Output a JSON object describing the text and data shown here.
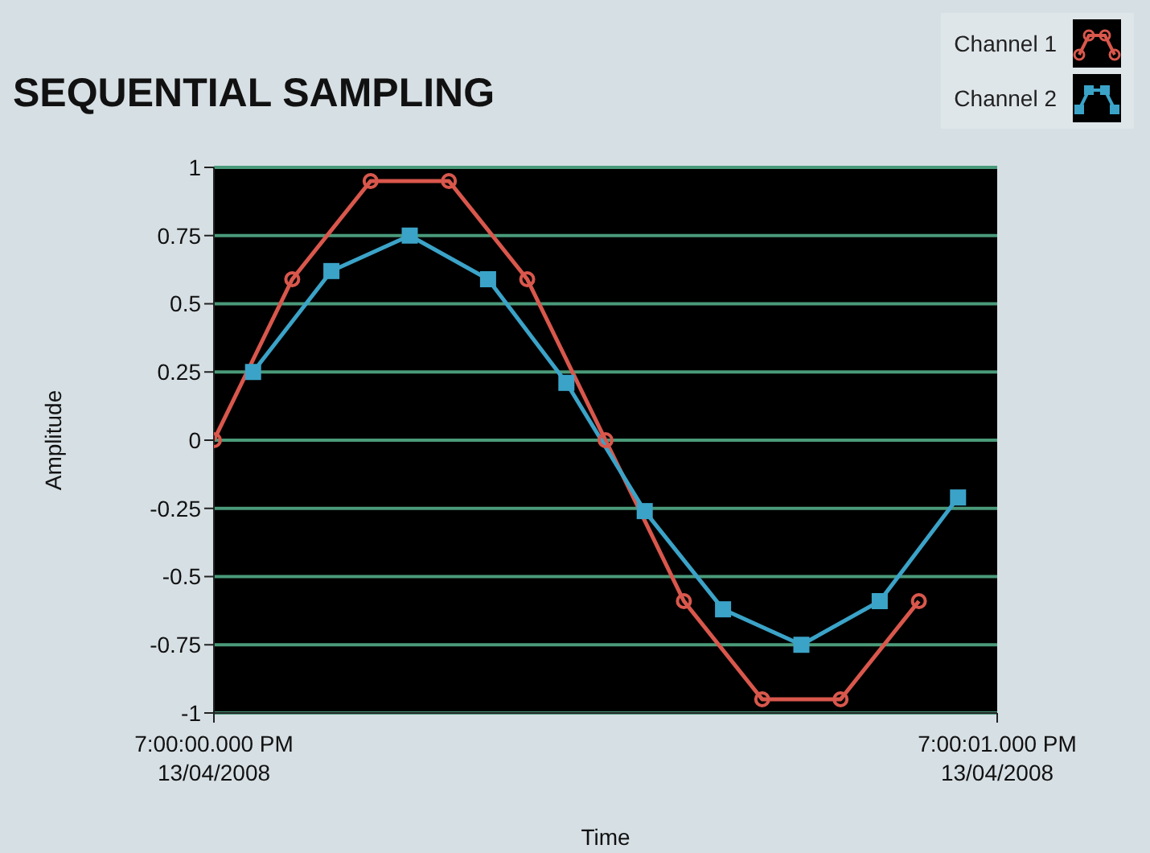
{
  "chart_data": {
    "type": "line",
    "title": "SEQUENTIAL SAMPLING",
    "xlabel": "Time",
    "ylabel": "Amplitude",
    "xlim": [
      "2008-04-13T19:00:00.000",
      "2008-04-13T19:00:01.000"
    ],
    "xticks": [
      {
        "value": "2008-04-13T19:00:00.000",
        "label": "7:00:00.000 PM\n13/04/2008"
      },
      {
        "value": "2008-04-13T19:00:01.000",
        "label": "7:00:01.000 PM\n13/04/2008"
      }
    ],
    "ylim": [
      -1,
      1
    ],
    "yticks": [
      -1,
      -0.75,
      -0.5,
      -0.25,
      0,
      0.25,
      0.5,
      0.75,
      1
    ],
    "grid": "y",
    "legend": "top right",
    "series": [
      {
        "name": "Channel 1",
        "color": "#d9574c",
        "marker": "circle",
        "x": [
          "2008-04-13T19:00:00.000",
          "2008-04-13T19:00:00.100",
          "2008-04-13T19:00:00.200",
          "2008-04-13T19:00:00.300",
          "2008-04-13T19:00:00.400",
          "2008-04-13T19:00:00.500",
          "2008-04-13T19:00:00.600",
          "2008-04-13T19:00:00.700",
          "2008-04-13T19:00:00.800",
          "2008-04-13T19:00:00.900"
        ],
        "values": [
          0,
          0.59,
          0.95,
          0.95,
          0.59,
          0,
          -0.59,
          -0.95,
          -0.95,
          -0.59
        ]
      },
      {
        "name": "Channel 2",
        "color": "#3ba3c8",
        "marker": "square",
        "x": [
          "2008-04-13T19:00:00.050",
          "2008-04-13T19:00:00.150",
          "2008-04-13T19:00:00.250",
          "2008-04-13T19:00:00.350",
          "2008-04-13T19:00:00.450",
          "2008-04-13T19:00:00.550",
          "2008-04-13T19:00:00.650",
          "2008-04-13T19:00:00.750",
          "2008-04-13T19:00:00.850",
          "2008-04-13T19:00:00.950"
        ],
        "values": [
          0.25,
          0.62,
          0.75,
          0.59,
          0.21,
          -0.26,
          -0.62,
          -0.75,
          -0.59,
          -0.21
        ]
      }
    ]
  }
}
